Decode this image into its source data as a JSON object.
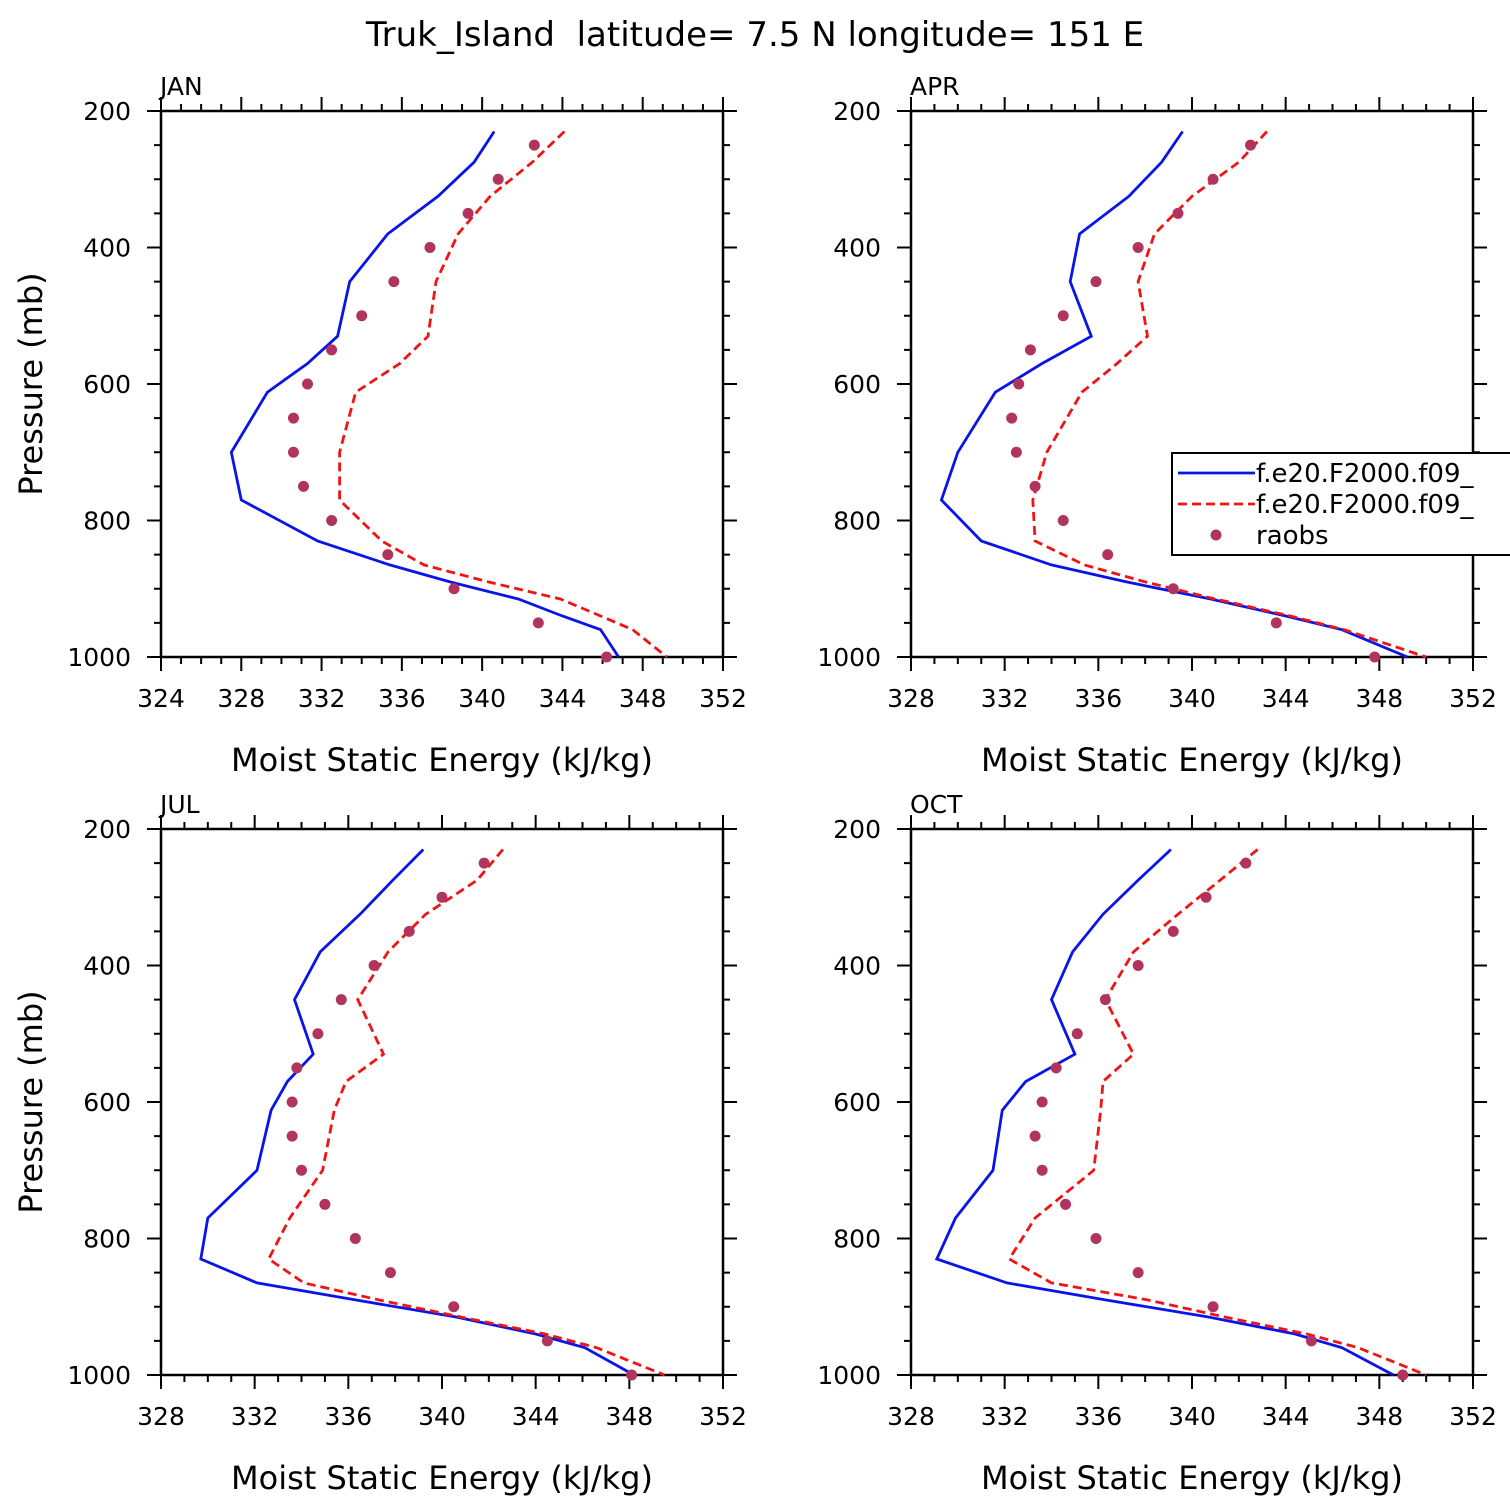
{
  "title": "Truk_Island  latitude= 7.5 N longitude= 151 E",
  "colors": {
    "model_solid": "#0a14e6",
    "model_dashed": "#f01414",
    "raobs": "#b0345e",
    "axis": "#000000"
  },
  "legend": {
    "entries": [
      {
        "label": "f.e20.F2000.f09_",
        "style": "solid"
      },
      {
        "label": "f.e20.F2000.f09_",
        "style": "dashed"
      },
      {
        "label": "raobs",
        "style": "marker"
      }
    ]
  },
  "chart_data": [
    {
      "type": "line",
      "panel": "JAN",
      "xlabel": "Moist Static Energy (kJ/kg)",
      "ylabel": "Pressure (mb)",
      "xlim": [
        324,
        352
      ],
      "xticks": [
        "324",
        "328",
        "332",
        "336",
        "340",
        "344",
        "348",
        "352"
      ],
      "ylim": [
        200,
        1000
      ],
      "yticks": [
        "200",
        "400",
        "600",
        "800",
        "1000"
      ],
      "series": [
        {
          "name": "f.e20.F2000.f09_ (solid)",
          "style": "solid",
          "points": [
            [
              340.6,
              230
            ],
            [
              339.6,
              275
            ],
            [
              337.8,
              325
            ],
            [
              335.3,
              380
            ],
            [
              333.4,
              450
            ],
            [
              332.8,
              530
            ],
            [
              331.3,
              570
            ],
            [
              329.3,
              612
            ],
            [
              327.5,
              700
            ],
            [
              328.0,
              770
            ],
            [
              331.8,
              830
            ],
            [
              335.4,
              865
            ],
            [
              338.4,
              890
            ],
            [
              341.8,
              915
            ],
            [
              344.0,
              940
            ],
            [
              345.9,
              960
            ],
            [
              346.8,
              1000
            ]
          ]
        },
        {
          "name": "f.e20.F2000.f09_ (dashed)",
          "style": "dashed",
          "points": [
            [
              344.1,
              230
            ],
            [
              342.5,
              275
            ],
            [
              340.4,
              325
            ],
            [
              338.8,
              380
            ],
            [
              337.7,
              450
            ],
            [
              337.3,
              530
            ],
            [
              335.9,
              570
            ],
            [
              333.7,
              612
            ],
            [
              332.9,
              700
            ],
            [
              332.9,
              770
            ],
            [
              335.0,
              830
            ],
            [
              337.1,
              865
            ],
            [
              340.3,
              890
            ],
            [
              343.9,
              915
            ],
            [
              345.9,
              940
            ],
            [
              347.5,
              960
            ],
            [
              349.2,
              1000
            ]
          ]
        },
        {
          "name": "raobs",
          "style": "marker",
          "points": [
            [
              342.6,
              250
            ],
            [
              340.8,
              300
            ],
            [
              339.3,
              350
            ],
            [
              337.4,
              400
            ],
            [
              335.6,
              450
            ],
            [
              334.0,
              500
            ],
            [
              332.5,
              550
            ],
            [
              331.3,
              600
            ],
            [
              330.6,
              650
            ],
            [
              330.6,
              700
            ],
            [
              331.1,
              750
            ],
            [
              332.5,
              800
            ],
            [
              335.3,
              850
            ],
            [
              338.6,
              900
            ],
            [
              342.8,
              950
            ],
            [
              346.2,
              1000
            ]
          ]
        }
      ]
    },
    {
      "type": "line",
      "panel": "APR",
      "xlabel": "Moist Static Energy (kJ/kg)",
      "ylabel": "",
      "xlim": [
        328,
        352
      ],
      "xticks": [
        "328",
        "332",
        "336",
        "340",
        "344",
        "348",
        "352"
      ],
      "ylim": [
        200,
        1000
      ],
      "yticks": [
        "200",
        "400",
        "600",
        "800",
        "1000"
      ],
      "series": [
        {
          "name": "f.e20.F2000.f09_ (solid)",
          "style": "solid",
          "points": [
            [
              339.6,
              230
            ],
            [
              338.7,
              275
            ],
            [
              337.3,
              325
            ],
            [
              335.2,
              380
            ],
            [
              334.8,
              450
            ],
            [
              335.7,
              530
            ],
            [
              333.6,
              570
            ],
            [
              331.6,
              612
            ],
            [
              330.0,
              700
            ],
            [
              329.3,
              770
            ],
            [
              331.0,
              830
            ],
            [
              334.0,
              865
            ],
            [
              337.2,
              890
            ],
            [
              340.8,
              915
            ],
            [
              344.0,
              940
            ],
            [
              346.4,
              960
            ],
            [
              349.2,
              1000
            ]
          ]
        },
        {
          "name": "f.e20.F2000.f09_ (dashed)",
          "style": "dashed",
          "points": [
            [
              343.2,
              230
            ],
            [
              342.0,
              275
            ],
            [
              340.0,
              325
            ],
            [
              338.4,
              380
            ],
            [
              337.7,
              450
            ],
            [
              338.1,
              530
            ],
            [
              336.8,
              570
            ],
            [
              335.3,
              612
            ],
            [
              333.8,
              700
            ],
            [
              333.2,
              770
            ],
            [
              333.3,
              830
            ],
            [
              335.4,
              865
            ],
            [
              338.0,
              890
            ],
            [
              341.0,
              915
            ],
            [
              344.2,
              940
            ],
            [
              346.5,
              960
            ],
            [
              350.0,
              1000
            ]
          ]
        },
        {
          "name": "raobs",
          "style": "marker",
          "points": [
            [
              342.5,
              250
            ],
            [
              340.9,
              300
            ],
            [
              339.4,
              350
            ],
            [
              337.7,
              400
            ],
            [
              335.9,
              450
            ],
            [
              334.5,
              500
            ],
            [
              333.1,
              550
            ],
            [
              332.6,
              600
            ],
            [
              332.3,
              650
            ],
            [
              332.5,
              700
            ],
            [
              333.3,
              750
            ],
            [
              334.5,
              800
            ],
            [
              336.4,
              850
            ],
            [
              339.2,
              900
            ],
            [
              343.6,
              950
            ],
            [
              347.8,
              1000
            ]
          ]
        }
      ]
    },
    {
      "type": "line",
      "panel": "JUL",
      "xlabel": "Moist Static Energy (kJ/kg)",
      "ylabel": "Pressure (mb)",
      "xlim": [
        328,
        352
      ],
      "xticks": [
        "328",
        "332",
        "336",
        "340",
        "344",
        "348",
        "352"
      ],
      "ylim": [
        200,
        1000
      ],
      "yticks": [
        "200",
        "400",
        "600",
        "800",
        "1000"
      ],
      "series": [
        {
          "name": "f.e20.F2000.f09_ (solid)",
          "style": "solid",
          "points": [
            [
              339.2,
              230
            ],
            [
              337.9,
              275
            ],
            [
              336.5,
              325
            ],
            [
              334.8,
              380
            ],
            [
              333.7,
              450
            ],
            [
              334.5,
              530
            ],
            [
              333.4,
              570
            ],
            [
              332.7,
              612
            ],
            [
              332.1,
              700
            ],
            [
              330.0,
              770
            ],
            [
              329.7,
              830
            ],
            [
              332.1,
              865
            ],
            [
              336.3,
              890
            ],
            [
              340.6,
              915
            ],
            [
              344.0,
              940
            ],
            [
              346.1,
              960
            ],
            [
              348.2,
              1000
            ]
          ]
        },
        {
          "name": "f.e20.F2000.f09_ (dashed)",
          "style": "dashed",
          "points": [
            [
              342.6,
              230
            ],
            [
              341.5,
              275
            ],
            [
              339.3,
              325
            ],
            [
              337.7,
              380
            ],
            [
              336.4,
              450
            ],
            [
              337.5,
              530
            ],
            [
              335.9,
              570
            ],
            [
              335.4,
              612
            ],
            [
              334.9,
              700
            ],
            [
              333.5,
              770
            ],
            [
              332.6,
              830
            ],
            [
              334.1,
              865
            ],
            [
              337.3,
              890
            ],
            [
              340.8,
              915
            ],
            [
              344.4,
              940
            ],
            [
              346.6,
              960
            ],
            [
              349.5,
              1000
            ]
          ]
        },
        {
          "name": "raobs",
          "style": "marker",
          "points": [
            [
              341.8,
              250
            ],
            [
              340.0,
              300
            ],
            [
              338.6,
              350
            ],
            [
              337.1,
              400
            ],
            [
              335.7,
              450
            ],
            [
              334.7,
              500
            ],
            [
              333.8,
              550
            ],
            [
              333.6,
              600
            ],
            [
              333.6,
              650
            ],
            [
              334.0,
              700
            ],
            [
              335.0,
              750
            ],
            [
              336.3,
              800
            ],
            [
              337.8,
              850
            ],
            [
              340.5,
              900
            ],
            [
              344.5,
              950
            ],
            [
              348.1,
              1000
            ]
          ]
        }
      ]
    },
    {
      "type": "line",
      "panel": "OCT",
      "xlabel": "Moist Static Energy (kJ/kg)",
      "ylabel": "",
      "xlim": [
        328,
        352
      ],
      "xticks": [
        "328",
        "332",
        "336",
        "340",
        "344",
        "348",
        "352"
      ],
      "ylim": [
        200,
        1000
      ],
      "yticks": [
        "200",
        "400",
        "600",
        "800",
        "1000"
      ],
      "series": [
        {
          "name": "f.e20.F2000.f09_ (solid)",
          "style": "solid",
          "points": [
            [
              339.1,
              230
            ],
            [
              337.7,
              275
            ],
            [
              336.2,
              325
            ],
            [
              334.9,
              380
            ],
            [
              334.0,
              450
            ],
            [
              335.0,
              530
            ],
            [
              332.9,
              570
            ],
            [
              331.9,
              612
            ],
            [
              331.5,
              700
            ],
            [
              329.9,
              770
            ],
            [
              329.1,
              830
            ],
            [
              332.1,
              865
            ],
            [
              336.3,
              890
            ],
            [
              340.7,
              915
            ],
            [
              344.4,
              940
            ],
            [
              346.4,
              960
            ],
            [
              348.6,
              1000
            ]
          ]
        },
        {
          "name": "f.e20.F2000.f09_ (dashed)",
          "style": "dashed",
          "points": [
            [
              342.8,
              230
            ],
            [
              341.2,
              275
            ],
            [
              339.4,
              325
            ],
            [
              337.5,
              380
            ],
            [
              336.3,
              450
            ],
            [
              337.5,
              530
            ],
            [
              336.2,
              570
            ],
            [
              336.1,
              612
            ],
            [
              335.8,
              700
            ],
            [
              333.3,
              770
            ],
            [
              332.2,
              830
            ],
            [
              334.0,
              865
            ],
            [
              338.1,
              890
            ],
            [
              341.4,
              915
            ],
            [
              344.9,
              940
            ],
            [
              347.1,
              960
            ],
            [
              350.0,
              1000
            ]
          ]
        },
        {
          "name": "raobs",
          "style": "marker",
          "points": [
            [
              342.3,
              250
            ],
            [
              340.6,
              300
            ],
            [
              339.2,
              350
            ],
            [
              337.7,
              400
            ],
            [
              336.3,
              450
            ],
            [
              335.1,
              500
            ],
            [
              334.2,
              550
            ],
            [
              333.6,
              600
            ],
            [
              333.3,
              650
            ],
            [
              333.6,
              700
            ],
            [
              334.6,
              750
            ],
            [
              335.9,
              800
            ],
            [
              337.7,
              850
            ],
            [
              340.9,
              900
            ],
            [
              345.1,
              950
            ],
            [
              349.0,
              1000
            ]
          ]
        }
      ]
    }
  ]
}
